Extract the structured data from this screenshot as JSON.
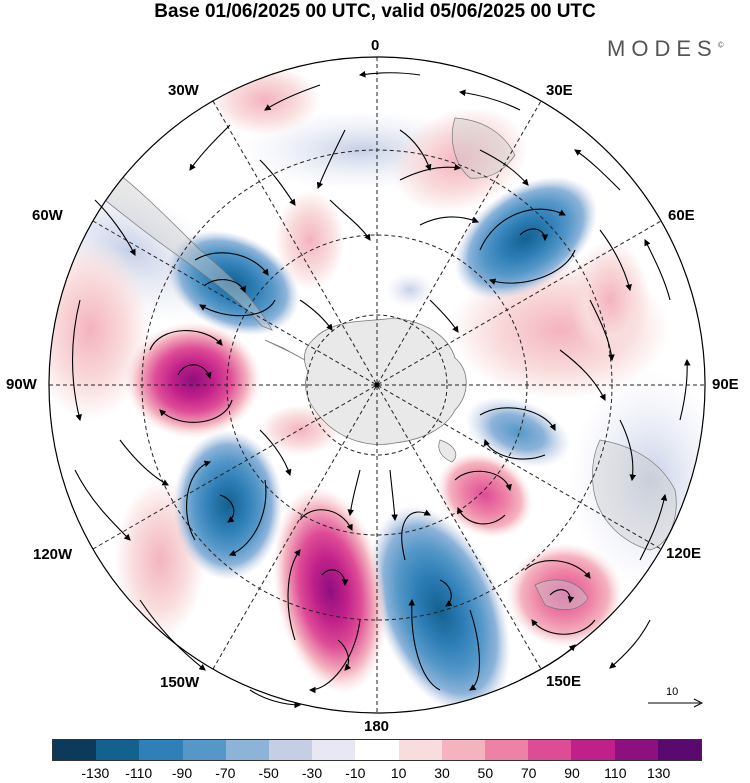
{
  "title": "Base 01/06/2025 00 UTC, valid 05/06/2025 00 UTC",
  "brand": {
    "name": "MODES",
    "mark": "©"
  },
  "longitude_labels": {
    "lon_0": "0",
    "lon_30e": "30E",
    "lon_60e": "60E",
    "lon_90e": "90E",
    "lon_120e": "120E",
    "lon_150e": "150E",
    "lon_180": "180",
    "lon_150w": "150W",
    "lon_120w": "120W",
    "lon_90w": "90W",
    "lon_60w": "60W",
    "lon_30w": "30W"
  },
  "reference_vector": {
    "value": "10"
  },
  "colorbar": {
    "colors": [
      "#0b3a5c",
      "#13618f",
      "#2f7fb8",
      "#5598c8",
      "#8db3d9",
      "#c4cfe6",
      "#e8e8f4",
      "#ffffff",
      "#f9dcdc",
      "#f4b3bf",
      "#ee82a6",
      "#de4c96",
      "#c0208a",
      "#8e0f7e",
      "#5a0a6e"
    ],
    "tick_labels": [
      "-130",
      "-110",
      "-90",
      "-70",
      "-50",
      "-30",
      "-10",
      "10",
      "30",
      "50",
      "70",
      "90",
      "110",
      "130"
    ]
  }
}
